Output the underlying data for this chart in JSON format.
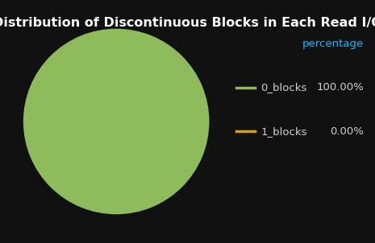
{
  "title": "Distribution of Discontinuous Blocks in Each Read I/O",
  "background_color": "#111111",
  "title_color": "#ffffff",
  "title_fontsize": 11.5,
  "slices": [
    99.9999,
    0.0001
  ],
  "labels": [
    "0_blocks",
    "1_blocks"
  ],
  "percentages": [
    "100.00%",
    "0.00%"
  ],
  "colors": [
    "#8fbc5a",
    "#d4a017"
  ],
  "legend_header": "percentage",
  "legend_header_color": "#00bfff",
  "legend_text_color": "#d0d0d0",
  "legend_fontsize": 9.5,
  "legend_header_fontsize": 9.5
}
